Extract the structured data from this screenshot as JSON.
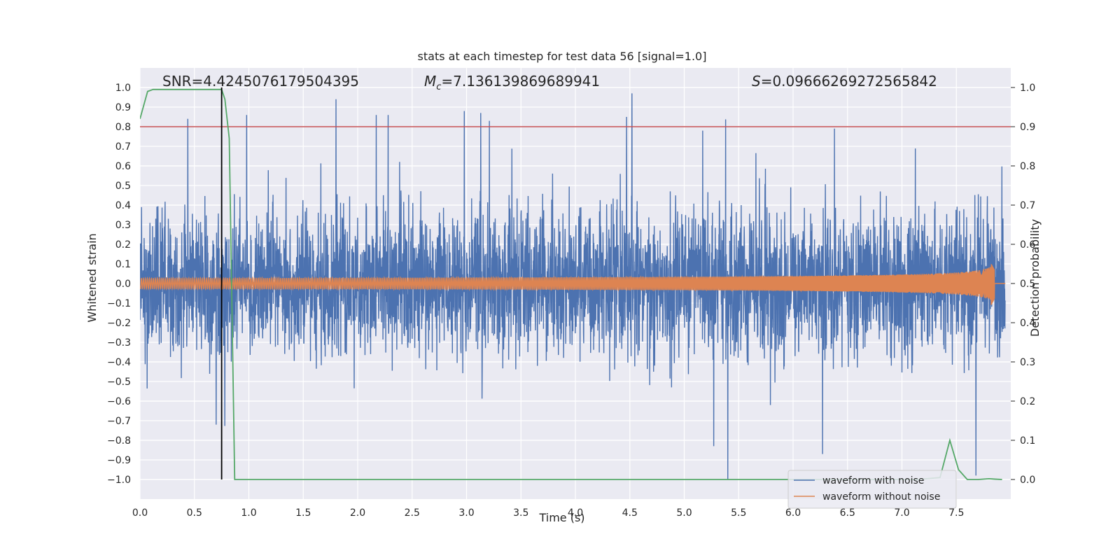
{
  "chart_data": {
    "type": "line",
    "title": "stats at each timestep for test data 56 [signal=1.0]",
    "xlabel": "Time (s)",
    "ylabel_left": "Whitened strain",
    "ylabel_right": "Detection probability",
    "xlim": [
      0.0,
      8.0
    ],
    "ylim_left": [
      -1.1,
      1.1
    ],
    "ylim_right": [
      -0.05,
      1.05
    ],
    "x_ticks": [
      "0.0",
      "0.5",
      "1.0",
      "1.5",
      "2.0",
      "2.5",
      "3.0",
      "3.5",
      "4.0",
      "4.5",
      "5.0",
      "5.5",
      "6.0",
      "6.5",
      "7.0",
      "7.5"
    ],
    "y_ticks_left": [
      "1.0",
      "0.9",
      "0.8",
      "0.7",
      "0.6",
      "0.5",
      "0.4",
      "0.3",
      "0.2",
      "0.1",
      "0.0",
      "−0.1",
      "−0.2",
      "−0.3",
      "−0.4",
      "−0.5",
      "−0.6",
      "−0.7",
      "−0.8",
      "−0.9",
      "−1.0"
    ],
    "y_ticks_right": [
      "1.0",
      "0.9",
      "0.8",
      "0.7",
      "0.6",
      "0.5",
      "0.4",
      "0.3",
      "0.2",
      "0.1",
      "0.0"
    ],
    "grid": true,
    "stats": {
      "snr": "SNR=4.4245076179504395",
      "mc_symbol": "M",
      "mc_subscript": "c",
      "mc_value": "=7.136139869689941",
      "s_symbol": "S",
      "s_value": "=0.09666269272565842"
    },
    "threshold_probability": 0.9,
    "marker_time": 0.75,
    "series": [
      {
        "name": "waveform with noise",
        "axis": "left",
        "color": "#4c72b0",
        "noise_std": 0.18,
        "notable_peaks": [
          {
            "x": 0.44,
            "y": 0.84
          },
          {
            "x": 0.98,
            "y": 0.86
          },
          {
            "x": 1.8,
            "y": 0.94
          },
          {
            "x": 2.17,
            "y": 0.86
          },
          {
            "x": 2.28,
            "y": 0.86
          },
          {
            "x": 2.98,
            "y": 0.88
          },
          {
            "x": 3.13,
            "y": 0.87
          },
          {
            "x": 3.21,
            "y": 0.83
          },
          {
            "x": 4.47,
            "y": 0.85
          },
          {
            "x": 4.52,
            "y": 0.97
          },
          {
            "x": 5.17,
            "y": 0.78
          },
          {
            "x": 6.38,
            "y": 0.79
          },
          {
            "x": 5.4,
            "y": -1.0
          },
          {
            "x": 0.7,
            "y": -0.72
          },
          {
            "x": 5.27,
            "y": -0.83
          },
          {
            "x": 6.27,
            "y": -0.87
          }
        ]
      },
      {
        "name": "waveform without noise",
        "axis": "left",
        "color": "#dd8452",
        "merger_time": 7.85,
        "peak_amplitude": 0.1
      },
      {
        "name": "detection probability",
        "axis": "right",
        "color": "#55a868",
        "x": [
          0.0,
          0.07,
          0.12,
          0.2,
          0.5,
          0.75,
          0.78,
          0.82,
          0.87,
          1.0,
          7.15,
          7.35,
          7.44,
          7.52,
          7.6,
          7.7,
          7.8,
          7.85,
          7.92
        ],
        "values": [
          0.92,
          0.99,
          0.995,
          0.995,
          0.995,
          0.995,
          0.97,
          0.87,
          0.0,
          0.0,
          0.0,
          0.005,
          0.1,
          0.025,
          0.0,
          0.0,
          0.002,
          0.001,
          0.0
        ]
      },
      {
        "name": "threshold",
        "axis": "right",
        "color": "#c44e52",
        "values": [
          0.9,
          0.9
        ]
      }
    ],
    "legend": {
      "position": "lower-right",
      "entries": [
        {
          "label": "waveform with noise",
          "color": "#4c72b0"
        },
        {
          "label": "waveform without noise",
          "color": "#dd8452"
        }
      ]
    }
  }
}
